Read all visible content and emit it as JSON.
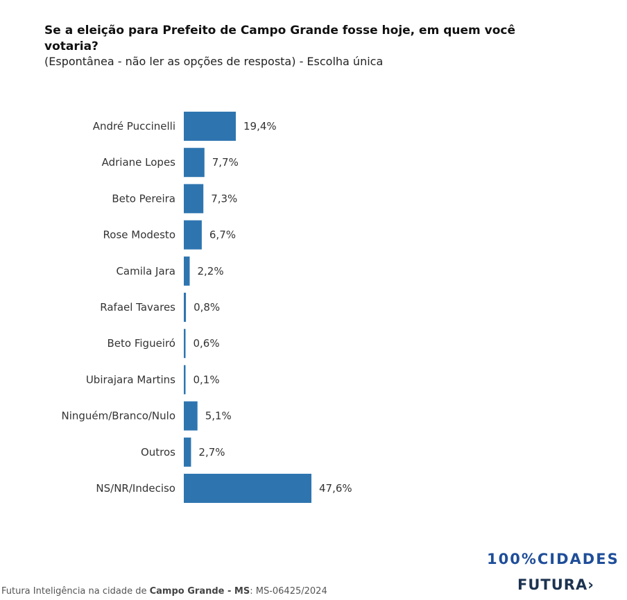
{
  "chart_data": {
    "type": "bar",
    "orientation": "horizontal",
    "title": "Se a eleição para Prefeito de Campo Grande fosse hoje, em quem você votaria?",
    "subtitle": "(Espontânea - não ler as opções de resposta) - Escolha única",
    "categories": [
      "André Puccinelli",
      "Adriane Lopes",
      "Beto Pereira",
      "Rose Modesto",
      "Camila Jara",
      "Rafael Tavares",
      "Beto Figueiró",
      "Ubirajara Martins",
      "Ninguém/Branco/Nulo",
      "Outros",
      "NS/NR/Indeciso"
    ],
    "values": [
      19.4,
      7.7,
      7.3,
      6.7,
      2.2,
      0.8,
      0.6,
      0.1,
      5.1,
      2.7,
      47.6
    ],
    "labels": [
      "19,4%",
      "7,7%",
      "7,3%",
      "6,7%",
      "2,2%",
      "0,8%",
      "0,6%",
      "0,1%",
      "5,1%",
      "2,7%",
      "47,6%"
    ],
    "xlim": [
      0,
      50
    ],
    "grid": false,
    "bar_color": "#2e75b0"
  },
  "footer": {
    "prefix": "Futura Inteligência na cidade de ",
    "city": "Campo Grande - MS",
    "suffix": ": MS-06425/2024"
  },
  "logo": {
    "line1": "100%CIDADES",
    "line2": "FUTURA›"
  }
}
